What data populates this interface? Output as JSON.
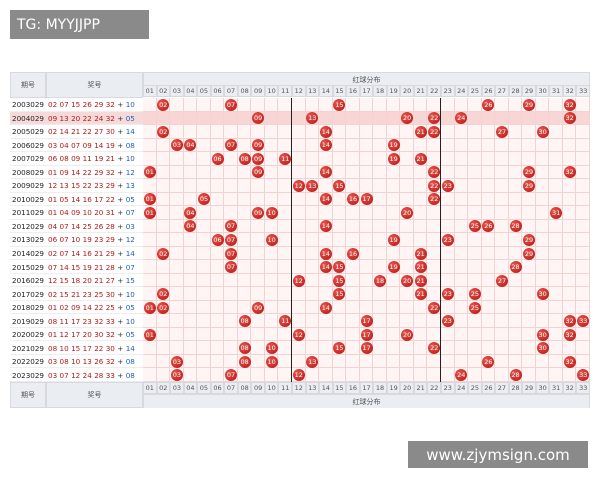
{
  "watermark_top": "TG: MYYJJPP",
  "watermark_bottom": "www.zjymsign.com",
  "table": {
    "header": {
      "issue": "期号",
      "numbers": "奖号",
      "distribution": "红球分布",
      "columns": [
        "01",
        "02",
        "03",
        "04",
        "05",
        "06",
        "07",
        "08",
        "09",
        "10",
        "11",
        "12",
        "13",
        "14",
        "15",
        "16",
        "17",
        "18",
        "19",
        "20",
        "21",
        "22",
        "23",
        "24",
        "25",
        "26",
        "27",
        "28",
        "29",
        "30",
        "31",
        "32",
        "33"
      ]
    },
    "separator": "+",
    "rows": [
      {
        "issue": "2003029",
        "reds": [
          "02",
          "07",
          "15",
          "26",
          "29",
          "32"
        ],
        "blue": "10"
      },
      {
        "issue": "2004029",
        "reds": [
          "09",
          "13",
          "20",
          "22",
          "24",
          "32"
        ],
        "blue": "05"
      },
      {
        "issue": "2005029",
        "reds": [
          "02",
          "14",
          "21",
          "22",
          "27",
          "30"
        ],
        "blue": "14"
      },
      {
        "issue": "2006029",
        "reds": [
          "03",
          "04",
          "07",
          "09",
          "14",
          "19"
        ],
        "blue": "08"
      },
      {
        "issue": "2007029",
        "reds": [
          "06",
          "08",
          "09",
          "11",
          "19",
          "21"
        ],
        "blue": "10"
      },
      {
        "issue": "2008029",
        "reds": [
          "01",
          "09",
          "14",
          "22",
          "29",
          "32"
        ],
        "blue": "12"
      },
      {
        "issue": "2009029",
        "reds": [
          "12",
          "13",
          "15",
          "22",
          "23",
          "29"
        ],
        "blue": "13"
      },
      {
        "issue": "2010029",
        "reds": [
          "01",
          "05",
          "14",
          "16",
          "17",
          "22"
        ],
        "blue": "05"
      },
      {
        "issue": "2011029",
        "reds": [
          "01",
          "04",
          "09",
          "10",
          "20",
          "31"
        ],
        "blue": "07"
      },
      {
        "issue": "2012029",
        "reds": [
          "04",
          "07",
          "14",
          "25",
          "26",
          "28"
        ],
        "blue": "03"
      },
      {
        "issue": "2013029",
        "reds": [
          "06",
          "07",
          "10",
          "19",
          "23",
          "29"
        ],
        "blue": "12"
      },
      {
        "issue": "2014029",
        "reds": [
          "02",
          "07",
          "14",
          "16",
          "21",
          "29"
        ],
        "blue": "14"
      },
      {
        "issue": "2015029",
        "reds": [
          "07",
          "14",
          "15",
          "19",
          "21",
          "28"
        ],
        "blue": "07"
      },
      {
        "issue": "2016029",
        "reds": [
          "12",
          "15",
          "18",
          "20",
          "21",
          "27"
        ],
        "blue": "15"
      },
      {
        "issue": "2017029",
        "reds": [
          "02",
          "15",
          "21",
          "23",
          "25",
          "30"
        ],
        "blue": "10"
      },
      {
        "issue": "2018029",
        "reds": [
          "01",
          "02",
          "09",
          "14",
          "22",
          "25"
        ],
        "blue": "05"
      },
      {
        "issue": "2019029",
        "reds": [
          "08",
          "11",
          "17",
          "23",
          "32",
          "33"
        ],
        "blue": "10"
      },
      {
        "issue": "2020029",
        "reds": [
          "01",
          "12",
          "17",
          "20",
          "30",
          "32"
        ],
        "blue": "05"
      },
      {
        "issue": "2021029",
        "reds": [
          "08",
          "10",
          "15",
          "17",
          "22",
          "30"
        ],
        "blue": "14"
      },
      {
        "issue": "2022029",
        "reds": [
          "03",
          "08",
          "10",
          "13",
          "26",
          "32"
        ],
        "blue": "08"
      },
      {
        "issue": "2023029",
        "reds": [
          "03",
          "07",
          "12",
          "24",
          "28",
          "33"
        ],
        "blue": "08"
      }
    ]
  }
}
